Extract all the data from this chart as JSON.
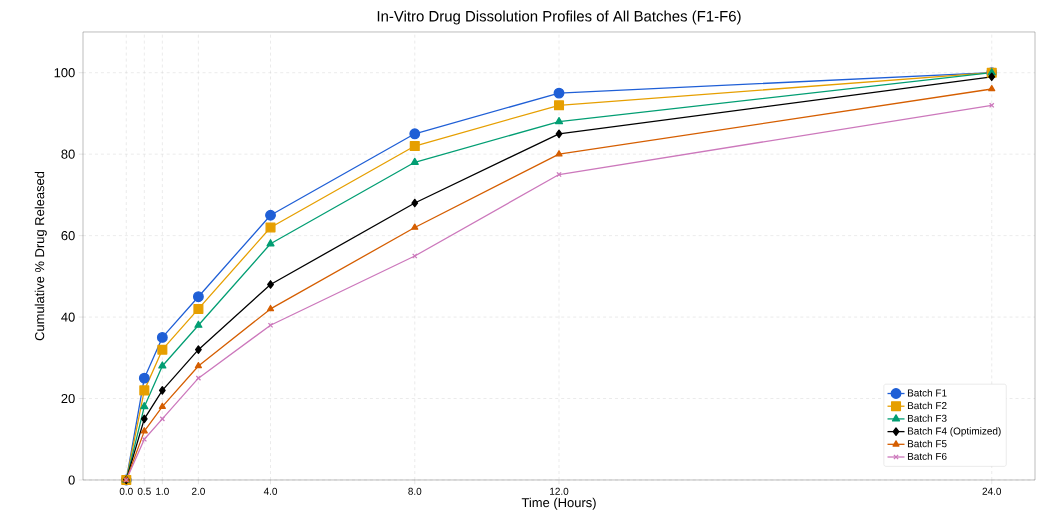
{
  "chart_data": {
    "type": "line",
    "title": "In-Vitro Drug Dissolution Profiles of All Batches (F1-F6)",
    "xlabel": "Time (Hours)",
    "ylabel": "Cumulative % Drug Released",
    "x": [
      0,
      0.5,
      1,
      2,
      4,
      8,
      12,
      24
    ],
    "series": [
      {
        "name": "Batch F1",
        "color": "#1f5fd6",
        "marker": "circle",
        "values": [
          0,
          25,
          35,
          45,
          65,
          85,
          95,
          100
        ]
      },
      {
        "name": "Batch F2",
        "color": "#e69f00",
        "marker": "square",
        "values": [
          0,
          22,
          32,
          42,
          62,
          82,
          92,
          100
        ]
      },
      {
        "name": "Batch F3",
        "color": "#029e73",
        "marker": "triangle",
        "values": [
          0,
          18,
          28,
          38,
          58,
          78,
          88,
          100
        ]
      },
      {
        "name": "Batch F4 (Optimized)",
        "color": "#000000",
        "marker": "diamond",
        "values": [
          0,
          15,
          22,
          32,
          48,
          68,
          85,
          99
        ]
      },
      {
        "name": "Batch F5",
        "color": "#d55e00",
        "marker": "triangle",
        "values": [
          0,
          12,
          18,
          28,
          42,
          62,
          80,
          96
        ]
      },
      {
        "name": "Batch F6",
        "color": "#cc78bc",
        "marker": "cross",
        "values": [
          0,
          10,
          15,
          25,
          38,
          55,
          75,
          92
        ]
      }
    ],
    "xlim": [
      -1.2,
      25.2
    ],
    "ylim": [
      0,
      110
    ],
    "xticks": [
      {
        "value": 0,
        "label": "0.0"
      },
      {
        "value": 0.5,
        "label": "0.5"
      },
      {
        "value": 1,
        "label": "1.0"
      },
      {
        "value": 2,
        "label": "2.0"
      },
      {
        "value": 4,
        "label": "4.0"
      },
      {
        "value": 8,
        "label": "8.0"
      },
      {
        "value": 12,
        "label": "12.0"
      },
      {
        "value": 24,
        "label": "24.0"
      }
    ],
    "yticks": [
      0,
      20,
      40,
      60,
      80,
      100
    ],
    "grid": true,
    "legend": "bottom right",
    "line_style": "solid"
  }
}
